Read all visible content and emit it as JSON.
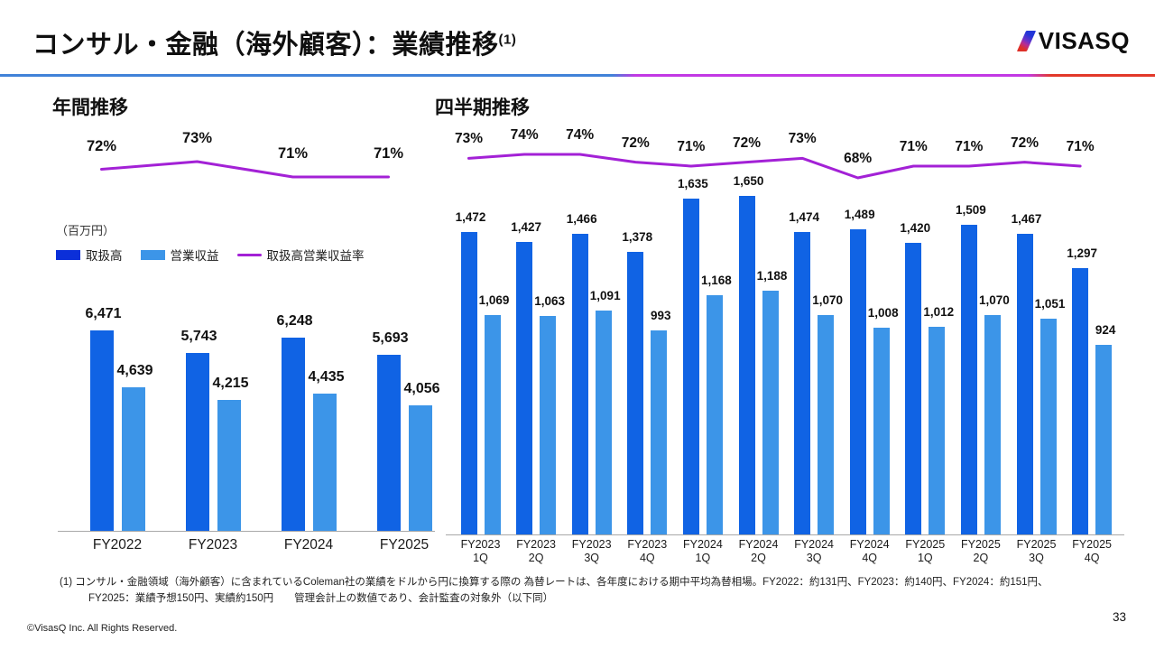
{
  "slide": {
    "title": "コンサル・金融（海外顧客）：業績推移",
    "title_superscript": "(1)",
    "logo_text": "VISASQ",
    "page_number": "33",
    "copyright": "©VisasQ Inc. All Rights Reserved.",
    "footnote_line1": "(1) コンサル・金融領域（海外顧客）に含まれているColeman社の業績をドルから円に換算する際の 為替レートは、各年度における期中平均為替相場。FY2022：約131円、FY2023：約140円、FY2024：約151円、",
    "footnote_line2": "FY2025：業績予想150円、実績約150円　　管理会計上の数値であり、会計監査の対象外（以下同）"
  },
  "legend": {
    "unit_label": "（百万円）",
    "items": [
      {
        "label": "取扱高",
        "type": "swatch",
        "color": "#0b2fd9"
      },
      {
        "label": "営業収益",
        "type": "swatch",
        "color": "#3c95e8"
      },
      {
        "label": "取扱高営業収益率",
        "type": "line",
        "color": "#a321d6"
      }
    ]
  },
  "colors": {
    "bar_dark": "#1063e4",
    "bar_light": "#3c95e8",
    "ratio_line": "#a321d6",
    "divider_blue": "#4182d8",
    "divider_magenta": "#c238e4",
    "divider_red": "#e2382a"
  },
  "chart_data": [
    {
      "type": "bar",
      "combo": "bar+line",
      "title": "年間推移",
      "unit": "百万円",
      "categories": [
        "FY2022",
        "FY2023",
        "FY2024",
        "FY2025"
      ],
      "series": [
        {
          "name": "取扱高",
          "type": "bar",
          "values": [
            6471,
            5743,
            6248,
            5693
          ]
        },
        {
          "name": "営業収益",
          "type": "bar",
          "values": [
            4639,
            4215,
            4435,
            4056
          ]
        },
        {
          "name": "取扱高営業収益率",
          "type": "line",
          "unit": "%",
          "values": [
            72,
            73,
            71,
            71
          ]
        }
      ],
      "legend_position": "top-left",
      "value_axis_visible": false
    },
    {
      "type": "bar",
      "combo": "bar+line",
      "title": "四半期推移",
      "unit": "百万円",
      "categories": [
        [
          "FY2023",
          "1Q"
        ],
        [
          "FY2023",
          "2Q"
        ],
        [
          "FY2023",
          "3Q"
        ],
        [
          "FY2023",
          "4Q"
        ],
        [
          "FY2024",
          "1Q"
        ],
        [
          "FY2024",
          "2Q"
        ],
        [
          "FY2024",
          "3Q"
        ],
        [
          "FY2024",
          "4Q"
        ],
        [
          "FY2025",
          "1Q"
        ],
        [
          "FY2025",
          "2Q"
        ],
        [
          "FY2025",
          "3Q"
        ],
        [
          "FY2025",
          "4Q"
        ]
      ],
      "series": [
        {
          "name": "取扱高",
          "type": "bar",
          "values": [
            1472,
            1427,
            1466,
            1378,
            1635,
            1650,
            1474,
            1489,
            1420,
            1509,
            1467,
            1297
          ]
        },
        {
          "name": "営業収益",
          "type": "bar",
          "values": [
            1069,
            1063,
            1091,
            993,
            1168,
            1188,
            1070,
            1008,
            1012,
            1070,
            1051,
            924
          ]
        },
        {
          "name": "取扱高営業収益率",
          "type": "line",
          "unit": "%",
          "values": [
            73,
            74,
            74,
            72,
            71,
            72,
            73,
            68,
            71,
            71,
            72,
            71
          ]
        }
      ],
      "legend_position": "none",
      "value_axis_visible": false
    }
  ]
}
